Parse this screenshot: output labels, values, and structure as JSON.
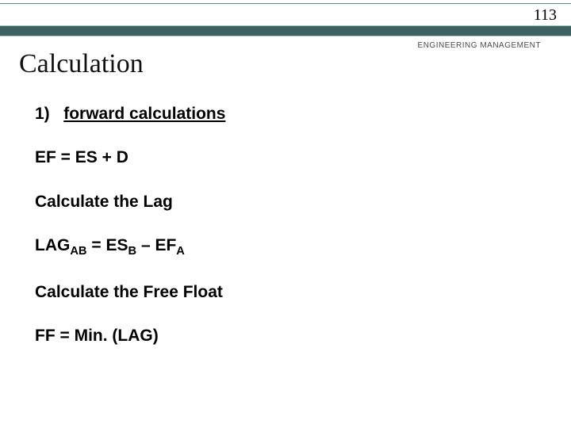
{
  "page_number": "113",
  "subheader": "ENGINEERING MANAGEMENT",
  "title": "Calculation",
  "section_number": "1)",
  "section_label": "forward calculations",
  "eq1": "EF = ES + D",
  "calc_lag_label": "Calculate the Lag",
  "lag_prefix": "LAG",
  "lag_sub": "AB",
  "lag_mid": " = ES",
  "lag_sub2": "B",
  "lag_mid2": " – EF",
  "lag_sub3": "A",
  "calc_ff_label": "Calculate the Free Float",
  "ff_eq": "FF = Min. (LAG)",
  "colors": {
    "band": "#3e6262",
    "rule": "#5a8a8a",
    "background": "#ffffff"
  }
}
